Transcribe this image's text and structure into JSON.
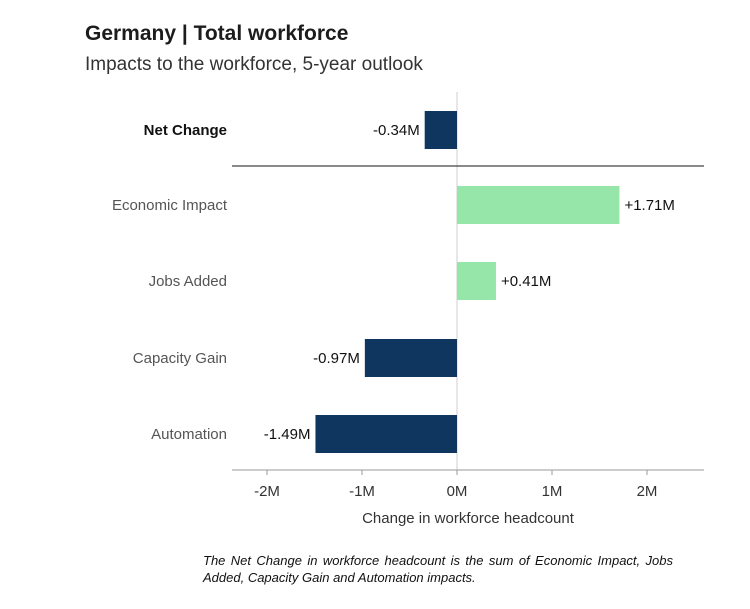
{
  "header": {
    "title": "Germany | Total workforce",
    "subtitle": "Impacts to the workforce, 5-year outlook"
  },
  "footnote": "The Net Change in workforce headcount is the sum of Economic Impact, Jobs Added, Capacity Gain and Automation impacts.",
  "colors": {
    "positive": "#95e6a8",
    "negative": "#0e365f",
    "axis": "#9a9a9a",
    "separator": "#444444"
  },
  "chart_data": {
    "type": "bar",
    "orientation": "horizontal",
    "categories": [
      "Net Change",
      "Economic Impact",
      "Jobs Added",
      "Capacity Gain",
      "Automation"
    ],
    "values": [
      -0.34,
      1.71,
      0.41,
      -0.97,
      -1.49
    ],
    "data_labels": [
      "-0.34M",
      "+1.71M",
      "+0.41M",
      "-0.97M",
      "-1.49M"
    ],
    "xlabel": "Change in workforce headcount",
    "xlim": [
      -2.35,
      2.6
    ],
    "x_ticks": [
      -2,
      -1,
      0,
      1,
      2
    ],
    "x_tick_labels": [
      "-2M",
      "-1M",
      "0M",
      "1M",
      "2M"
    ],
    "grid": false
  }
}
